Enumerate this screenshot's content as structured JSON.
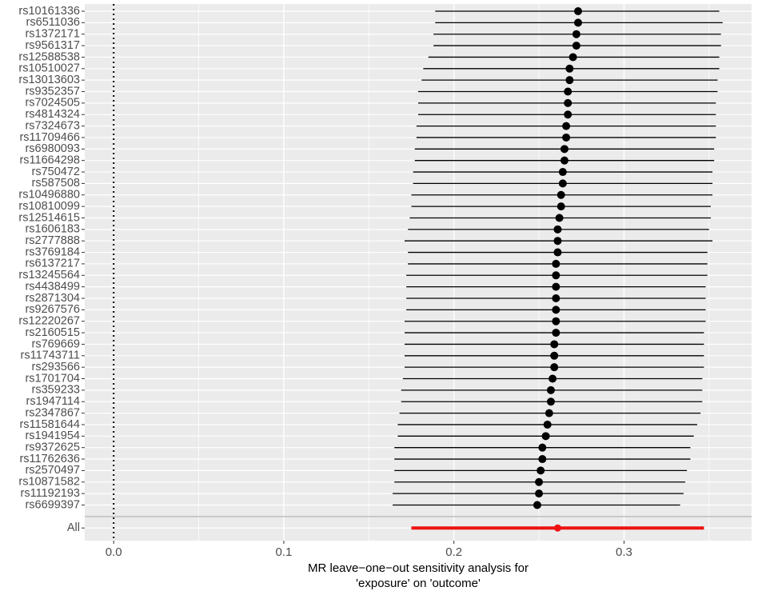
{
  "chart_data": {
    "type": "forest",
    "xlabel": [
      "MR leave−one−out sensitivity analysis for",
      "'exposure' on 'outcome'"
    ],
    "categories": [
      "rs10161336",
      "rs6511036",
      "rs1372171",
      "rs9561317",
      "rs12588538",
      "rs10510027",
      "rs13013603",
      "rs9352357",
      "rs7024505",
      "rs4814324",
      "rs7324673",
      "rs11709466",
      "rs6980093",
      "rs11664298",
      "rs750472",
      "rs587508",
      "rs10496880",
      "rs10810099",
      "rs12514615",
      "rs1606183",
      "rs2777888",
      "rs3769184",
      "rs6137217",
      "rs13245564",
      "rs4438499",
      "rs2871304",
      "rs9267576",
      "rs12220267",
      "rs2160515",
      "rs769669",
      "rs11743711",
      "rs293566",
      "rs1701704",
      "rs359233",
      "rs1947114",
      "rs2347867",
      "rs11581644",
      "rs1941954",
      "rs9372625",
      "rs11762636",
      "rs2570497",
      "rs10871582",
      "rs11192193",
      "rs6699397",
      null,
      "All"
    ],
    "values": [
      0.273,
      0.273,
      0.272,
      0.272,
      0.27,
      0.268,
      0.268,
      0.267,
      0.267,
      0.267,
      0.266,
      0.266,
      0.265,
      0.265,
      0.264,
      0.264,
      0.263,
      0.263,
      0.262,
      0.261,
      0.261,
      0.261,
      0.26,
      0.26,
      0.26,
      0.26,
      0.26,
      0.26,
      0.26,
      0.259,
      0.259,
      0.259,
      0.258,
      0.257,
      0.257,
      0.256,
      0.255,
      0.254,
      0.252,
      0.252,
      0.251,
      0.25,
      0.25,
      0.249,
      null,
      0.261
    ],
    "lower": [
      0.189,
      0.189,
      0.188,
      0.188,
      0.185,
      0.182,
      0.181,
      0.179,
      0.179,
      0.179,
      0.178,
      0.178,
      0.177,
      0.177,
      0.176,
      0.176,
      0.175,
      0.175,
      0.174,
      0.173,
      0.171,
      0.173,
      0.173,
      0.172,
      0.172,
      0.172,
      0.172,
      0.171,
      0.171,
      0.171,
      0.171,
      0.171,
      0.17,
      0.169,
      0.169,
      0.168,
      0.167,
      0.167,
      0.165,
      0.165,
      0.165,
      0.165,
      0.164,
      0.164,
      null,
      0.175
    ],
    "upper": [
      0.356,
      0.358,
      0.357,
      0.357,
      0.356,
      0.356,
      0.355,
      0.355,
      0.354,
      0.354,
      0.354,
      0.354,
      0.353,
      0.353,
      0.352,
      0.352,
      0.352,
      0.351,
      0.351,
      0.35,
      0.352,
      0.349,
      0.349,
      0.349,
      0.348,
      0.348,
      0.348,
      0.348,
      0.347,
      0.347,
      0.347,
      0.347,
      0.346,
      0.346,
      0.346,
      0.345,
      0.343,
      0.341,
      0.339,
      0.339,
      0.337,
      0.336,
      0.335,
      0.333,
      null,
      0.347
    ],
    "color": "#000000",
    "summary_color": "#ee1111",
    "xlim": [
      -0.017,
      0.375
    ],
    "xticks": [
      {
        "value": 0,
        "label": "0.0"
      },
      0.1,
      0.2,
      0.3
    ],
    "minor_xticks": [
      0.05,
      0.15,
      0.25,
      0.35
    ],
    "reference_line": 0,
    "grid": true
  }
}
